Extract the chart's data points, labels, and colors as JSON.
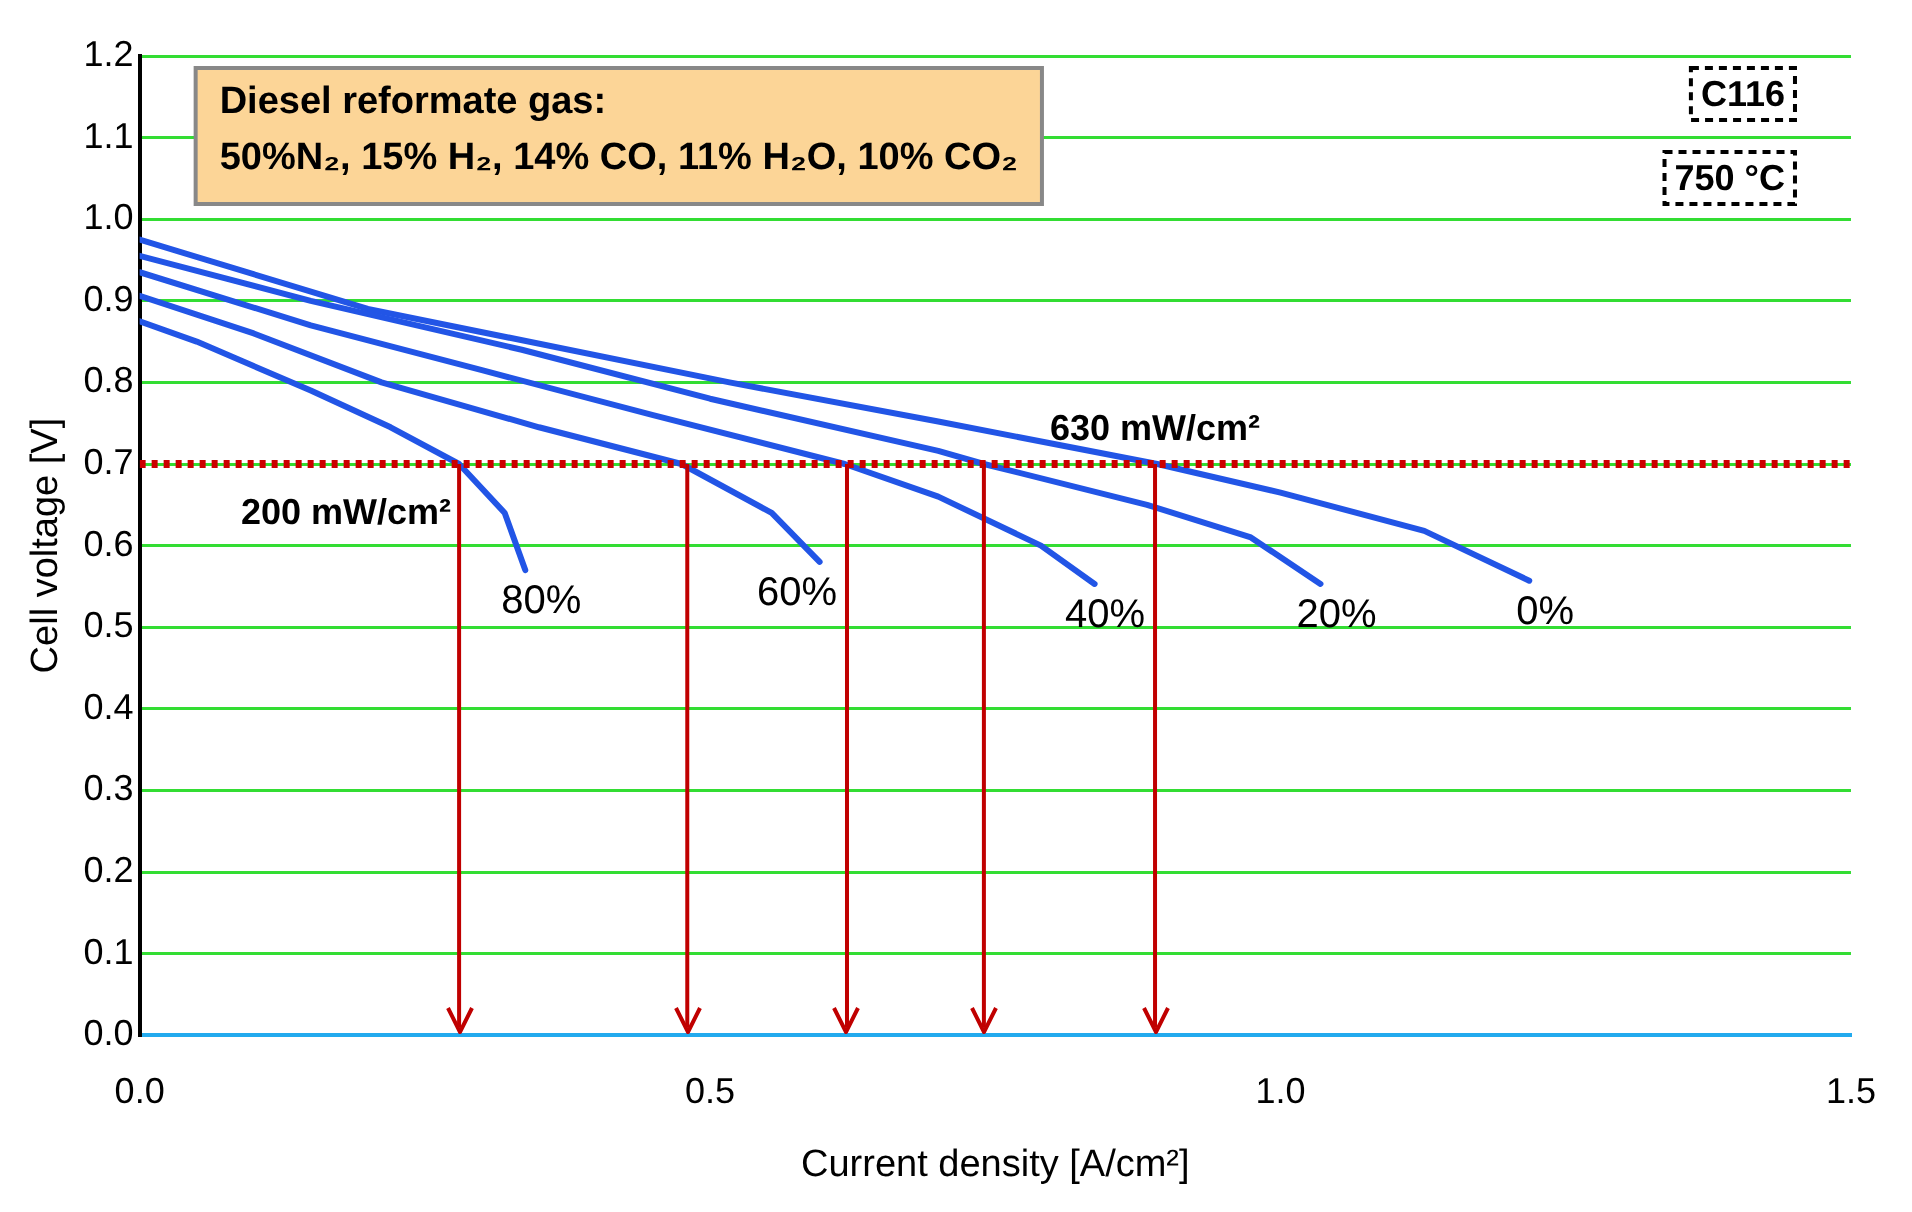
{
  "chart_data": {
    "type": "line",
    "xlabel": "Current density [A/cm²]",
    "ylabel": "Cell voltage [V]",
    "xlim": [
      0,
      1.5
    ],
    "xticks": [
      {
        "value": 0,
        "label": "0.0"
      },
      {
        "value": 0.5,
        "label": "0.5"
      },
      {
        "value": 1,
        "label": "1.0"
      },
      {
        "value": 1.5,
        "label": "1.5"
      }
    ],
    "ylim": [
      0,
      1.2
    ],
    "yticks": [
      {
        "value": 0,
        "label": "0.0"
      },
      {
        "value": 0.1,
        "label": "0.1"
      },
      {
        "value": 0.2,
        "label": "0.2"
      },
      {
        "value": 0.3,
        "label": "0.3"
      },
      {
        "value": 0.4,
        "label": "0.4"
      },
      {
        "value": 0.5,
        "label": "0.5"
      },
      {
        "value": 0.6,
        "label": "0.6"
      },
      {
        "value": 0.7,
        "label": "0.7"
      },
      {
        "value": 0.8,
        "label": "0.8"
      },
      {
        "value": 0.9,
        "label": "0.9"
      },
      {
        "value": 1,
        "label": "1.0"
      },
      {
        "value": 1.1,
        "label": "1.1"
      },
      {
        "value": 1.2,
        "label": "1.2"
      }
    ],
    "grid": "y",
    "legend": false,
    "marker": "none",
    "line_style": "solid",
    "series": [
      {
        "name": "80%",
        "color": "#2255e6",
        "x": [
          0,
          0.05,
          0.15,
          0.22,
          0.28,
          0.32,
          0.338
        ],
        "values": [
          0.875,
          0.85,
          0.79,
          0.745,
          0.7,
          0.64,
          0.57
        ]
      },
      {
        "name": "60%",
        "color": "#2255e6",
        "x": [
          0,
          0.1,
          0.212,
          0.35,
          0.475,
          0.554,
          0.596
        ],
        "values": [
          0.906,
          0.86,
          0.8,
          0.745,
          0.7,
          0.64,
          0.58
        ]
      },
      {
        "name": "40%",
        "color": "#2255e6",
        "x": [
          0,
          0.15,
          0.3,
          0.45,
          0.618,
          0.7,
          0.79,
          0.837
        ],
        "values": [
          0.935,
          0.87,
          0.815,
          0.76,
          0.7,
          0.66,
          0.6,
          0.553
        ]
      },
      {
        "name": "20%",
        "color": "#2255e6",
        "x": [
          0,
          0.15,
          0.335,
          0.5,
          0.7,
          0.74,
          0.883,
          0.974,
          1.035
        ],
        "values": [
          0.955,
          0.9,
          0.84,
          0.78,
          0.716,
          0.7,
          0.65,
          0.61,
          0.553
        ]
      },
      {
        "name": "0%",
        "color": "#2255e6",
        "x": [
          0,
          0.2,
          0.517,
          0.7,
          0.892,
          1.0,
          1.126,
          1.218
        ],
        "values": [
          0.975,
          0.89,
          0.8,
          0.752,
          0.7,
          0.665,
          0.618,
          0.557
        ]
      }
    ],
    "ref_lines": [
      {
        "axis": "y",
        "value": 0.7,
        "color": "#cc0000",
        "line_style": "dotted"
      },
      {
        "axis": "x",
        "value": 0.28,
        "color": "#c00000"
      },
      {
        "axis": "x",
        "value": 0.48,
        "color": "#c00000"
      },
      {
        "axis": "x",
        "value": 0.62,
        "color": "#c00000"
      },
      {
        "axis": "x",
        "value": 0.74,
        "color": "#c00000"
      },
      {
        "axis": "x",
        "value": 0.89,
        "color": "#c00000"
      }
    ],
    "annotations": [
      "Diesel reformate gas:\n50%N₂, 15% H₂, 14% CO, 11% H₂O, 10% CO₂",
      "C116",
      "750 °C",
      {
        "text": "630 mW/cm²",
        "x": 0.89,
        "y": 0.7
      },
      {
        "text": "200 mW/cm²",
        "x": 0.28,
        "y": 0.7
      }
    ]
  }
}
